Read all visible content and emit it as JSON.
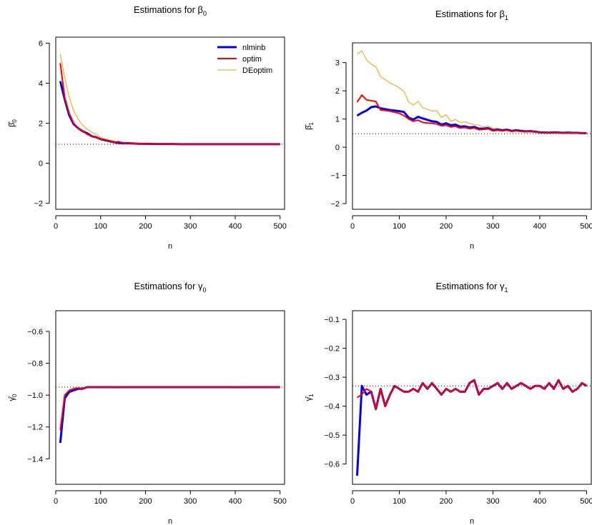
{
  "colors": {
    "nlminb": "#0000ee",
    "optim": "#ff0000",
    "DEoptim": "#f0a000",
    "reference": "#000000"
  },
  "legend": {
    "entries": [
      "nlminb",
      "optim",
      "DEoptim"
    ],
    "placement": "top-right of first panel"
  },
  "chart_data": [
    {
      "type": "line",
      "title": "Estimations for β0",
      "title_main": "Estimations for β",
      "title_sub": "0",
      "xlabel": "n",
      "ylabel_main": "β̂",
      "ylabel_sub": "0",
      "xlim": [
        0,
        510
      ],
      "ylim": [
        -2.3,
        6.3
      ],
      "xticks": [
        "0",
        "100",
        "200",
        "300",
        "400",
        "500"
      ],
      "xtick_values": [
        0,
        100,
        200,
        300,
        400,
        500
      ],
      "yticks": [
        "−2",
        "0",
        "2",
        "4",
        "6"
      ],
      "ytick_values": [
        -2,
        0,
        2,
        4,
        6
      ],
      "reference_y": 0.95,
      "x": [
        10,
        20,
        30,
        40,
        50,
        60,
        70,
        80,
        90,
        100,
        110,
        120,
        130,
        140,
        150,
        160,
        170,
        180,
        190,
        200,
        220,
        240,
        260,
        280,
        300,
        320,
        340,
        360,
        380,
        400,
        420,
        440,
        460,
        480,
        500
      ],
      "series": [
        {
          "name": "nlminb",
          "values": [
            4.1,
            3.2,
            2.4,
            1.95,
            1.75,
            1.6,
            1.5,
            1.35,
            1.3,
            1.2,
            1.15,
            1.1,
            1.05,
            1.02,
            1.0,
            1.0,
            0.99,
            0.98,
            0.97,
            0.97,
            0.96,
            0.96,
            0.96,
            0.95,
            0.95,
            0.95,
            0.95,
            0.95,
            0.95,
            0.95,
            0.95,
            0.95,
            0.95,
            0.95,
            0.95
          ]
        },
        {
          "name": "optim",
          "values": [
            5.0,
            3.3,
            2.5,
            2.0,
            1.75,
            1.6,
            1.45,
            1.35,
            1.3,
            1.2,
            1.18,
            1.12,
            1.05,
            1.08,
            1.02,
            1.0,
            0.99,
            0.98,
            0.97,
            0.97,
            0.96,
            0.96,
            0.96,
            0.95,
            0.95,
            0.95,
            0.95,
            0.95,
            0.95,
            0.95,
            0.95,
            0.95,
            0.95,
            0.95,
            0.95
          ]
        },
        {
          "name": "DEoptim",
          "values": [
            5.45,
            4.3,
            3.3,
            2.6,
            2.2,
            1.9,
            1.7,
            1.55,
            1.45,
            1.3,
            1.2,
            1.15,
            1.1,
            1.05,
            1.03,
            1.02,
            1.01,
            1.0,
            0.99,
            0.98,
            0.98,
            0.97,
            0.97,
            0.96,
            0.96,
            0.96,
            0.96,
            0.96,
            0.95,
            0.95,
            0.95,
            0.95,
            0.95,
            0.95,
            0.95
          ]
        }
      ]
    },
    {
      "type": "line",
      "title": "Estimations for β1",
      "title_main": "Estimations for β",
      "title_sub": "1",
      "xlabel": "n",
      "ylabel_main": "β̂",
      "ylabel_sub": "1",
      "xlim": [
        0,
        510
      ],
      "ylim": [
        -2.2,
        3.7
      ],
      "xticks": [
        "0",
        "100",
        "200",
        "300",
        "400",
        "500"
      ],
      "xtick_values": [
        0,
        100,
        200,
        300,
        400,
        500
      ],
      "yticks": [
        "−2",
        "−1",
        "0",
        "1",
        "2",
        "3"
      ],
      "ytick_values": [
        -2,
        -1,
        0,
        1,
        2,
        3
      ],
      "reference_y": 0.48,
      "x": [
        10,
        20,
        30,
        40,
        50,
        60,
        70,
        80,
        90,
        100,
        110,
        120,
        130,
        140,
        150,
        160,
        170,
        180,
        190,
        200,
        210,
        220,
        230,
        240,
        250,
        260,
        270,
        280,
        290,
        300,
        310,
        320,
        330,
        340,
        350,
        360,
        370,
        380,
        390,
        400,
        410,
        420,
        430,
        440,
        450,
        460,
        470,
        480,
        490,
        500
      ],
      "series": [
        {
          "name": "nlminb",
          "values": [
            1.12,
            1.22,
            1.3,
            1.42,
            1.45,
            1.38,
            1.35,
            1.32,
            1.3,
            1.28,
            1.25,
            1.05,
            0.98,
            1.08,
            1.02,
            0.97,
            0.92,
            0.9,
            0.8,
            0.85,
            0.78,
            0.8,
            0.73,
            0.74,
            0.7,
            0.72,
            0.66,
            0.66,
            0.68,
            0.6,
            0.62,
            0.6,
            0.62,
            0.58,
            0.6,
            0.58,
            0.56,
            0.57,
            0.55,
            0.53,
            0.52,
            0.52,
            0.53,
            0.52,
            0.51,
            0.52,
            0.51,
            0.51,
            0.5,
            0.5
          ]
        },
        {
          "name": "optim",
          "values": [
            1.6,
            1.85,
            1.68,
            1.65,
            1.62,
            1.32,
            1.3,
            1.28,
            1.24,
            1.2,
            1.12,
            1.0,
            0.92,
            0.96,
            0.88,
            0.86,
            0.85,
            0.82,
            0.76,
            0.78,
            0.72,
            0.74,
            0.68,
            0.7,
            0.66,
            0.68,
            0.62,
            0.63,
            0.65,
            0.58,
            0.6,
            0.58,
            0.6,
            0.56,
            0.58,
            0.56,
            0.55,
            0.56,
            0.54,
            0.52,
            0.51,
            0.52,
            0.52,
            0.51,
            0.5,
            0.51,
            0.5,
            0.5,
            0.5,
            0.49
          ]
        },
        {
          "name": "DEoptim",
          "values": [
            3.3,
            3.42,
            3.1,
            2.95,
            2.85,
            2.5,
            2.4,
            2.28,
            2.2,
            2.1,
            1.98,
            1.6,
            1.5,
            1.62,
            1.4,
            1.35,
            1.28,
            1.3,
            1.05,
            1.15,
            0.92,
            0.98,
            0.88,
            0.9,
            0.85,
            0.8,
            0.78,
            0.72,
            0.76,
            0.66,
            0.68,
            0.62,
            0.64,
            0.6,
            0.62,
            0.58,
            0.57,
            0.58,
            0.55,
            0.52,
            0.51,
            0.52,
            0.53,
            0.53,
            0.51,
            0.52,
            0.51,
            0.51,
            0.5,
            0.5
          ]
        }
      ]
    },
    {
      "type": "line",
      "title": "Estimations for γ0",
      "title_main": "Estimations for γ",
      "title_sub": "0",
      "xlabel": "n",
      "ylabel_main": "γ̂",
      "ylabel_sub": "0",
      "xlim": [
        0,
        510
      ],
      "ylim": [
        -1.56,
        -0.47
      ],
      "xticks": [
        "0",
        "100",
        "200",
        "300",
        "400",
        "500"
      ],
      "xtick_values": [
        0,
        100,
        200,
        300,
        400,
        500
      ],
      "yticks": [
        "−1.4",
        "−1.2",
        "−1.0",
        "−0.8",
        "−0.6"
      ],
      "ytick_values": [
        -1.4,
        -1.2,
        -1.0,
        -0.8,
        -0.6
      ],
      "reference_y": -0.95,
      "x": [
        10,
        20,
        30,
        40,
        50,
        60,
        70,
        80,
        90,
        100,
        120,
        140,
        160,
        180,
        200,
        220,
        240,
        260,
        280,
        300,
        320,
        340,
        360,
        380,
        400,
        420,
        440,
        460,
        480,
        500
      ],
      "series": [
        {
          "name": "nlminb",
          "values": [
            -1.3,
            -1.02,
            -0.98,
            -0.97,
            -0.96,
            -0.96,
            -0.95,
            -0.95,
            -0.95,
            -0.95,
            -0.95,
            -0.95,
            -0.95,
            -0.95,
            -0.95,
            -0.95,
            -0.95,
            -0.95,
            -0.95,
            -0.95,
            -0.95,
            -0.95,
            -0.95,
            -0.95,
            -0.95,
            -0.95,
            -0.95,
            -0.95,
            -0.95,
            -0.95
          ]
        },
        {
          "name": "optim",
          "values": [
            -1.22,
            -1.0,
            -0.97,
            -0.96,
            -0.955,
            -0.96,
            -0.95,
            -0.95,
            -0.95,
            -0.95,
            -0.95,
            -0.948,
            -0.95,
            -0.95,
            -0.95,
            -0.95,
            -0.95,
            -0.95,
            -0.95,
            -0.95,
            -0.95,
            -0.95,
            -0.95,
            -0.95,
            -0.948,
            -0.95,
            -0.95,
            -0.95,
            -0.95,
            -0.95
          ]
        },
        {
          "name": "DEoptim",
          "values": [
            -1.2,
            -1.0,
            -0.97,
            -0.96,
            -0.955,
            -0.955,
            -0.95,
            -0.95,
            -0.95,
            -0.95,
            -0.95,
            -0.95,
            -0.95,
            -0.95,
            -0.95,
            -0.95,
            -0.95,
            -0.95,
            -0.95,
            -0.95,
            -0.95,
            -0.95,
            -0.95,
            -0.95,
            -0.95,
            -0.95,
            -0.95,
            -0.95,
            -0.95,
            -0.95
          ]
        }
      ]
    },
    {
      "type": "line",
      "title": "Estimations for γ1",
      "title_main": "Estimations for γ",
      "title_sub": "1",
      "xlabel": "n",
      "ylabel_main": "γ̂",
      "ylabel_sub": "1",
      "xlim": [
        0,
        510
      ],
      "ylim": [
        -0.67,
        -0.07
      ],
      "xticks": [
        "0",
        "100",
        "200",
        "300",
        "400",
        "500"
      ],
      "xtick_values": [
        0,
        100,
        200,
        300,
        400,
        500
      ],
      "yticks": [
        "−0.6",
        "−0.5",
        "−0.4",
        "−0.3",
        "−0.2",
        "−0.1"
      ],
      "ytick_values": [
        -0.6,
        -0.5,
        -0.4,
        -0.3,
        -0.2,
        -0.1
      ],
      "reference_y": -0.33,
      "x": [
        10,
        20,
        30,
        40,
        50,
        60,
        70,
        80,
        90,
        100,
        110,
        120,
        130,
        140,
        150,
        160,
        170,
        180,
        190,
        200,
        210,
        220,
        230,
        240,
        250,
        260,
        270,
        280,
        290,
        300,
        310,
        320,
        330,
        340,
        350,
        360,
        370,
        380,
        390,
        400,
        410,
        420,
        430,
        440,
        450,
        460,
        470,
        480,
        490,
        500
      ],
      "series": [
        {
          "name": "nlminb",
          "values": [
            -0.64,
            -0.33,
            -0.36,
            -0.35,
            -0.41,
            -0.34,
            -0.4,
            -0.36,
            -0.33,
            -0.34,
            -0.35,
            -0.35,
            -0.34,
            -0.35,
            -0.32,
            -0.34,
            -0.32,
            -0.34,
            -0.36,
            -0.34,
            -0.35,
            -0.34,
            -0.35,
            -0.35,
            -0.32,
            -0.31,
            -0.36,
            -0.34,
            -0.34,
            -0.33,
            -0.32,
            -0.34,
            -0.32,
            -0.34,
            -0.33,
            -0.32,
            -0.33,
            -0.34,
            -0.33,
            -0.33,
            -0.34,
            -0.32,
            -0.34,
            -0.31,
            -0.34,
            -0.33,
            -0.35,
            -0.34,
            -0.32,
            -0.33
          ]
        },
        {
          "name": "optim",
          "values": [
            -0.37,
            -0.36,
            -0.34,
            -0.35,
            -0.41,
            -0.34,
            -0.4,
            -0.36,
            -0.33,
            -0.34,
            -0.35,
            -0.35,
            -0.34,
            -0.35,
            -0.32,
            -0.34,
            -0.32,
            -0.34,
            -0.36,
            -0.34,
            -0.35,
            -0.34,
            -0.35,
            -0.35,
            -0.32,
            -0.31,
            -0.36,
            -0.34,
            -0.34,
            -0.33,
            -0.32,
            -0.34,
            -0.32,
            -0.34,
            -0.33,
            -0.32,
            -0.33,
            -0.34,
            -0.33,
            -0.33,
            -0.34,
            -0.32,
            -0.34,
            -0.31,
            -0.34,
            -0.33,
            -0.35,
            -0.34,
            -0.32,
            -0.33
          ]
        },
        {
          "name": "DEoptim",
          "values": [
            -0.37,
            -0.36,
            -0.34,
            -0.35,
            -0.41,
            -0.34,
            -0.4,
            -0.36,
            -0.33,
            -0.34,
            -0.35,
            -0.35,
            -0.34,
            -0.35,
            -0.32,
            -0.34,
            -0.32,
            -0.34,
            -0.36,
            -0.34,
            -0.35,
            -0.34,
            -0.35,
            -0.35,
            -0.32,
            -0.31,
            -0.36,
            -0.34,
            -0.34,
            -0.33,
            -0.32,
            -0.34,
            -0.32,
            -0.34,
            -0.33,
            -0.32,
            -0.33,
            -0.34,
            -0.33,
            -0.33,
            -0.34,
            -0.32,
            -0.34,
            -0.31,
            -0.34,
            -0.33,
            -0.35,
            -0.34,
            -0.32,
            -0.33
          ]
        }
      ]
    }
  ]
}
